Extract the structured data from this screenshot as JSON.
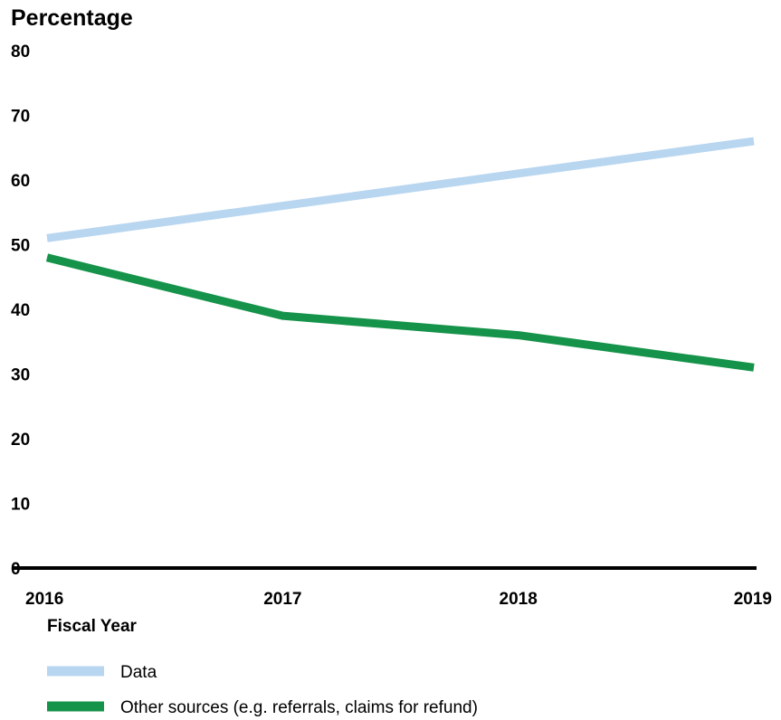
{
  "chart_data": {
    "type": "line",
    "title": "",
    "ylabel": "Percentage",
    "xlabel": "Fiscal Year",
    "x": [
      2016,
      2017,
      2018,
      2019
    ],
    "x_tick_labels": [
      "2016",
      "2017",
      "2018",
      "2019"
    ],
    "ylim": [
      0,
      80
    ],
    "y_ticks": [
      0,
      10,
      20,
      30,
      40,
      50,
      60,
      70,
      80
    ],
    "y_tick_labels": [
      "0",
      "10",
      "20",
      "30",
      "40",
      "50",
      "60",
      "70",
      "80"
    ],
    "grid": false,
    "legend_position": "bottom-left",
    "series": [
      {
        "name": "Data",
        "color": "#b8d6f0",
        "values": [
          51,
          56,
          61,
          66
        ]
      },
      {
        "name": "Other sources (e.g. referrals, claims for refund)",
        "color": "#16934a",
        "values": [
          48,
          39,
          36,
          31
        ]
      }
    ]
  }
}
